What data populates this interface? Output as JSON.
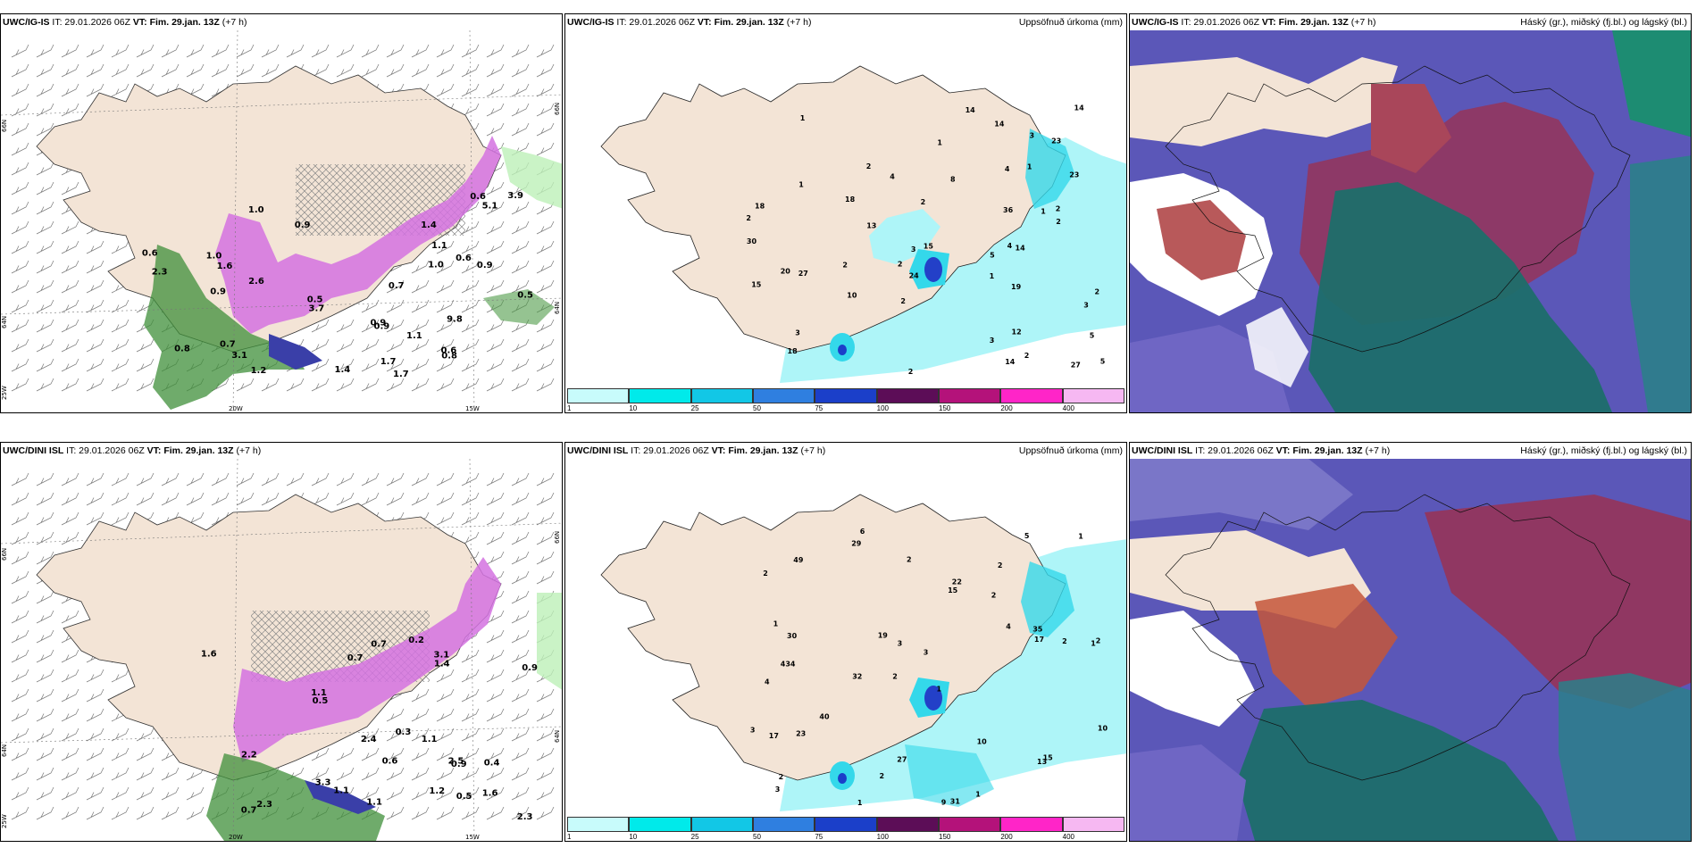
{
  "colors": {
    "land": "#f3e4d6",
    "rain_light": "#aef5f8",
    "rain_mid": "#34d8ea",
    "snow": "#d472e0",
    "green": "#3f8f3a",
    "high_cloud": "#a9465a",
    "mid_cloud": "#5b57b8",
    "low_cloud": "#1d6e6a"
  },
  "rows": [
    {
      "model_label": "UWC/IG-IS",
      "it_label": "IT: 29.01.2026 06Z",
      "vt_label": "VT: Fim. 29.jan. 13Z",
      "lead": "(+7 h)",
      "precip_title": "Uppsöfnuð úrkoma (mm)",
      "cloud_title": "Háský (gr.), miðský (fj.bl.) og lágský (bl.)",
      "lat_labels": [
        "66N",
        "64N",
        "66N",
        "64N"
      ],
      "lon_labels": [
        "25W",
        "20W",
        "15W"
      ],
      "wind_map_values": [
        "1.7",
        "1.0",
        "0.7",
        "1.0",
        "0.6",
        "1.7",
        "0.5",
        "2.6",
        "3.7",
        "3.1",
        "0.8",
        "0.6",
        "0.5",
        "0.9",
        "1.0",
        "0.6",
        "2.3",
        "5.1",
        "9.8",
        "0.9",
        "0.6",
        "0.9",
        "1.2",
        "0.8",
        "0.7",
        "1.1",
        "0.9",
        "1.6",
        "1.4",
        "0.9",
        "1.1",
        "3.9",
        "1.4"
      ],
      "precip_map_values": [
        "1",
        "2",
        "1",
        "3",
        "3",
        "1",
        "2",
        "2",
        "5",
        "2",
        "4",
        "5",
        "15",
        "19",
        "10",
        "27",
        "23",
        "20",
        "3",
        "4",
        "24",
        "30",
        "36",
        "14",
        "2",
        "3",
        "1",
        "4",
        "5",
        "27",
        "23",
        "14",
        "18",
        "12",
        "13",
        "18",
        "8",
        "15",
        "14",
        "14",
        "2",
        "2",
        "1",
        "2",
        "2",
        "2",
        "14",
        "18",
        "3",
        "1",
        "2"
      ]
    },
    {
      "model_label": "UWC/DINI ISL",
      "it_label": "IT: 29.01.2026 06Z",
      "vt_label": "VT: Fim. 29.jan. 13Z",
      "lead": "(+7 h)",
      "precip_title": "Uppsöfnuð úrkoma (mm)",
      "cloud_title": "Háský (gr.), miðský (fj.bl.) og lágský (bl.)",
      "lat_labels": [
        "66N",
        "64N",
        "66N",
        "64N"
      ],
      "lon_labels": [
        "25W",
        "20W",
        "15W"
      ],
      "wind_map_values": [
        "0.7",
        "0.4",
        "0.3",
        "0.6",
        "0.7",
        "0.2",
        "1.6",
        "3.1",
        "0.5",
        "3.3",
        "2.3",
        "0.5",
        "1.1",
        "0.7",
        "1.2",
        "1.1",
        "2.5",
        "2.2",
        "2.4",
        "0.9",
        "1.6",
        "2.3",
        "1.1",
        "1.1",
        "0.9",
        "1.4"
      ],
      "precip_map_values": [
        "6",
        "2",
        "1",
        "2",
        "1",
        "4",
        "2",
        "2",
        "4",
        "15",
        "3",
        "3",
        "29",
        "32",
        "9",
        "31",
        "27",
        "5",
        "4",
        "40",
        "30",
        "43",
        "2",
        "2",
        "3",
        "1",
        "3",
        "17",
        "15",
        "17",
        "13",
        "22",
        "23",
        "19",
        "10",
        "10",
        "35",
        "2",
        "1",
        "2",
        "2",
        "1",
        "1",
        "49"
      ]
    }
  ],
  "legend": {
    "ticks": [
      "1",
      "10",
      "25",
      "50",
      "75",
      "100",
      "150",
      "200",
      "400"
    ],
    "colors": [
      "#c8fbfb",
      "#00eaea",
      "#12c7e6",
      "#2f7fe0",
      "#1b3fc9",
      "#5c0d57",
      "#b4127a",
      "#ff25c8",
      "#f6b8f2"
    ]
  }
}
